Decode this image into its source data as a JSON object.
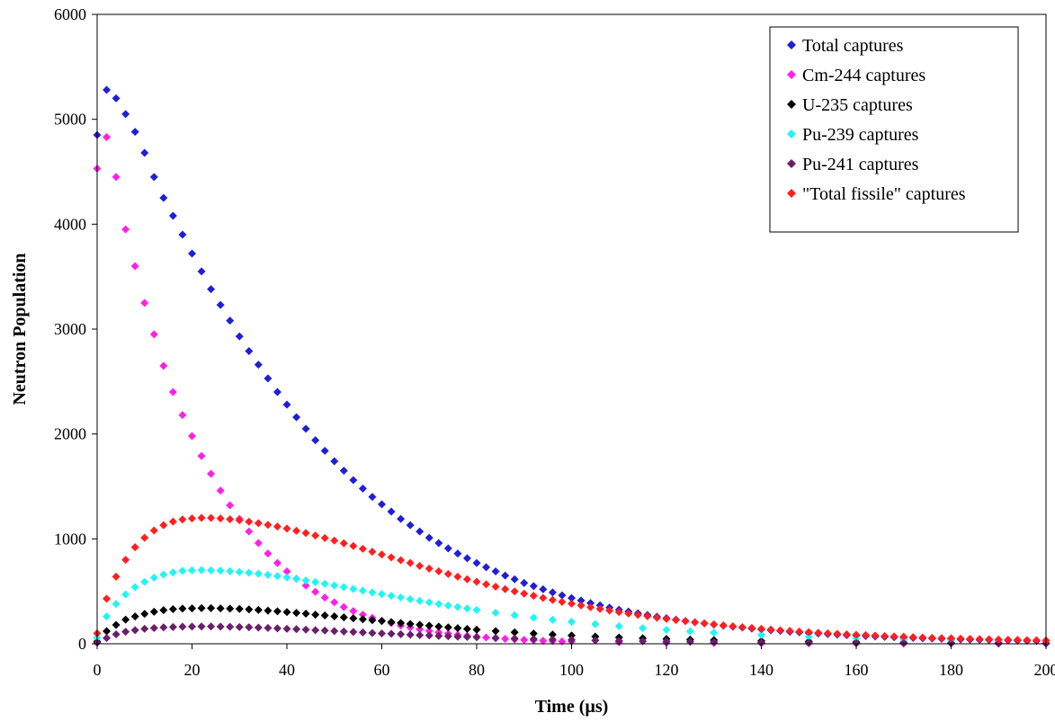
{
  "chart_data": {
    "type": "scatter",
    "title": "",
    "xlabel": "Time (µs)",
    "ylabel": "Neutron Population",
    "xlim": [
      0,
      200
    ],
    "ylim": [
      0,
      6000
    ],
    "x_ticks": [
      0,
      20,
      40,
      60,
      80,
      100,
      120,
      140,
      160,
      180,
      200
    ],
    "y_ticks": [
      0,
      1000,
      2000,
      3000,
      4000,
      5000,
      6000
    ],
    "grid": false,
    "legend_position": "top-right",
    "marker": "diamond",
    "series": [
      {
        "name": "Total captures",
        "color": "#1f1fd6",
        "x": [
          0,
          2,
          4,
          6,
          8,
          10,
          12,
          14,
          16,
          18,
          20,
          22,
          24,
          26,
          28,
          30,
          32,
          34,
          36,
          38,
          40,
          42,
          44,
          46,
          48,
          50,
          52,
          54,
          56,
          58,
          60,
          62,
          64,
          66,
          68,
          70,
          72,
          74,
          76,
          78,
          80,
          82,
          84,
          86,
          88,
          90,
          92,
          94,
          96,
          98,
          100,
          102,
          104,
          106,
          108,
          110,
          112,
          114,
          116,
          118,
          120,
          122,
          124,
          126,
          128,
          130,
          132,
          134,
          136,
          138,
          140,
          142,
          144,
          146,
          148,
          150,
          152,
          154,
          156,
          158,
          160,
          162,
          164,
          166,
          168,
          170,
          172,
          174,
          176,
          178,
          180,
          182,
          184,
          186,
          188,
          190,
          192,
          194,
          196,
          198,
          200
        ],
        "values": [
          4850,
          5280,
          5200,
          5050,
          4880,
          4680,
          4450,
          4250,
          4080,
          3900,
          3720,
          3550,
          3380,
          3230,
          3080,
          2930,
          2790,
          2660,
          2530,
          2400,
          2280,
          2160,
          2050,
          1940,
          1840,
          1740,
          1650,
          1560,
          1480,
          1400,
          1330,
          1260,
          1190,
          1130,
          1070,
          1010,
          960,
          910,
          860,
          815,
          770,
          730,
          690,
          650,
          615,
          580,
          550,
          520,
          490,
          462,
          436,
          412,
          388,
          366,
          345,
          325,
          307,
          290,
          274,
          258,
          244,
          230,
          217,
          205,
          194,
          183,
          173,
          163,
          154,
          145,
          137,
          129,
          122,
          115,
          109,
          103,
          97,
          92,
          87,
          82,
          78,
          74,
          70,
          66,
          62,
          59,
          56,
          53,
          50,
          47,
          45,
          42,
          40,
          38,
          36,
          34,
          32,
          30,
          28,
          27,
          25
        ]
      },
      {
        "name": "Cm-244 captures",
        "color": "#ff1fe8",
        "x": [
          0,
          2,
          4,
          6,
          8,
          10,
          12,
          14,
          16,
          18,
          20,
          22,
          24,
          26,
          28,
          30,
          32,
          34,
          36,
          38,
          40,
          42,
          44,
          46,
          48,
          50,
          52,
          54,
          56,
          58,
          60,
          62,
          64,
          66,
          68,
          70,
          72,
          74,
          76,
          78,
          80,
          82,
          84,
          86,
          88,
          90,
          92,
          94,
          96,
          98,
          100,
          110,
          120,
          130,
          140,
          150,
          160,
          170,
          180,
          190,
          200
        ],
        "values": [
          4530,
          4830,
          4450,
          3950,
          3600,
          3250,
          2950,
          2650,
          2400,
          2180,
          1980,
          1790,
          1620,
          1460,
          1320,
          1190,
          1070,
          960,
          860,
          770,
          690,
          620,
          555,
          495,
          440,
          395,
          350,
          312,
          278,
          248,
          220,
          196,
          174,
          155,
          138,
          122,
          108,
          96,
          85,
          76,
          67,
          60,
          53,
          47,
          42,
          37,
          33,
          29,
          26,
          23,
          21,
          14,
          10,
          7,
          5,
          4,
          3,
          2,
          2,
          1,
          1
        ]
      },
      {
        "name": "U-235 captures",
        "color": "#000000",
        "x": [
          0,
          2,
          4,
          6,
          8,
          10,
          12,
          14,
          16,
          18,
          20,
          22,
          24,
          26,
          28,
          30,
          32,
          34,
          36,
          38,
          40,
          42,
          44,
          46,
          48,
          50,
          52,
          54,
          56,
          58,
          60,
          62,
          64,
          66,
          68,
          70,
          72,
          74,
          76,
          78,
          80,
          84,
          88,
          92,
          96,
          100,
          105,
          110,
          115,
          120,
          125,
          130,
          140,
          150,
          160,
          170,
          180,
          190,
          200
        ],
        "values": [
          20,
          120,
          180,
          230,
          260,
          285,
          305,
          320,
          330,
          335,
          338,
          340,
          340,
          338,
          335,
          332,
          328,
          322,
          316,
          310,
          302,
          295,
          287,
          278,
          270,
          261,
          252,
          243,
          234,
          225,
          216,
          207,
          198,
          189,
          181,
          172,
          164,
          156,
          149,
          141,
          134,
          121,
          109,
          98,
          88,
          79,
          69,
          60,
          53,
          46,
          40,
          35,
          27,
          21,
          16,
          12,
          9,
          7,
          5
        ]
      },
      {
        "name": "Pu-239 captures",
        "color": "#1ff5f5",
        "x": [
          0,
          2,
          4,
          6,
          8,
          10,
          12,
          14,
          16,
          18,
          20,
          22,
          24,
          26,
          28,
          30,
          32,
          34,
          36,
          38,
          40,
          42,
          44,
          46,
          48,
          50,
          52,
          54,
          56,
          58,
          60,
          62,
          64,
          66,
          68,
          70,
          72,
          74,
          76,
          78,
          80,
          84,
          88,
          92,
          96,
          100,
          105,
          110,
          115,
          120,
          125,
          130,
          140,
          150,
          160,
          170,
          180,
          190,
          200
        ],
        "values": [
          60,
          260,
          380,
          470,
          540,
          590,
          630,
          660,
          680,
          695,
          700,
          702,
          700,
          697,
          692,
          685,
          677,
          668,
          657,
          645,
          632,
          618,
          603,
          588,
          572,
          556,
          540,
          523,
          507,
          490,
          474,
          457,
          441,
          425,
          409,
          394,
          379,
          364,
          350,
          336,
          322,
          296,
          272,
          249,
          228,
          209,
          187,
          167,
          149,
          133,
          119,
          106,
          84,
          67,
          53,
          42,
          33,
          26,
          21
        ]
      },
      {
        "name": "Pu-241 captures",
        "color": "#6b1f6b",
        "x": [
          0,
          2,
          4,
          6,
          8,
          10,
          12,
          14,
          16,
          18,
          20,
          22,
          24,
          26,
          28,
          30,
          32,
          34,
          36,
          38,
          40,
          42,
          44,
          46,
          48,
          50,
          52,
          54,
          56,
          58,
          60,
          62,
          64,
          66,
          68,
          70,
          72,
          74,
          76,
          78,
          80,
          84,
          88,
          92,
          96,
          100,
          105,
          110,
          115,
          120,
          125,
          130,
          140,
          150,
          160,
          170,
          180,
          190,
          200
        ],
        "values": [
          10,
          55,
          90,
          115,
          130,
          142,
          150,
          156,
          160,
          163,
          164,
          165,
          165,
          164,
          162,
          160,
          157,
          154,
          151,
          147,
          143,
          139,
          135,
          130,
          126,
          121,
          117,
          112,
          108,
          103,
          99,
          95,
          91,
          87,
          83,
          79,
          75,
          72,
          68,
          65,
          62,
          56,
          50,
          45,
          41,
          37,
          32,
          28,
          25,
          22,
          19,
          17,
          13,
          10,
          8,
          6,
          5,
          4,
          3
        ]
      },
      {
        "name": "\"Total fissile\" captures",
        "color": "#ff1f1f",
        "x": [
          0,
          2,
          4,
          6,
          8,
          10,
          12,
          14,
          16,
          18,
          20,
          22,
          24,
          26,
          28,
          30,
          32,
          34,
          36,
          38,
          40,
          42,
          44,
          46,
          48,
          50,
          52,
          54,
          56,
          58,
          60,
          62,
          64,
          66,
          68,
          70,
          72,
          74,
          76,
          78,
          80,
          82,
          84,
          86,
          88,
          90,
          92,
          94,
          96,
          98,
          100,
          102,
          104,
          106,
          108,
          110,
          112,
          114,
          116,
          118,
          120,
          122,
          124,
          126,
          128,
          130,
          132,
          134,
          136,
          138,
          140,
          142,
          144,
          146,
          148,
          150,
          152,
          154,
          156,
          158,
          160,
          162,
          164,
          166,
          168,
          170,
          172,
          174,
          176,
          178,
          180,
          182,
          184,
          186,
          188,
          190,
          192,
          194,
          196,
          198,
          200
        ],
        "values": [
          100,
          430,
          640,
          800,
          920,
          1010,
          1080,
          1130,
          1165,
          1185,
          1195,
          1200,
          1200,
          1195,
          1187,
          1177,
          1164,
          1150,
          1134,
          1117,
          1098,
          1077,
          1055,
          1032,
          1008,
          984,
          958,
          932,
          905,
          878,
          851,
          824,
          797,
          770,
          743,
          717,
          691,
          665,
          640,
          615,
          591,
          567,
          544,
          521,
          499,
          478,
          457,
          437,
          418,
          400,
          382,
          365,
          348,
          332,
          317,
          302,
          288,
          275,
          262,
          249,
          237,
          226,
          215,
          205,
          195,
          185,
          176,
          167,
          159,
          151,
          143,
          136,
          129,
          123,
          117,
          111,
          105,
          100,
          95,
          90,
          86,
          82,
          78,
          74,
          70,
          67,
          63,
          60,
          57,
          54,
          52,
          49,
          47,
          45,
          43,
          41,
          39,
          37,
          35,
          34,
          32
        ]
      }
    ]
  }
}
